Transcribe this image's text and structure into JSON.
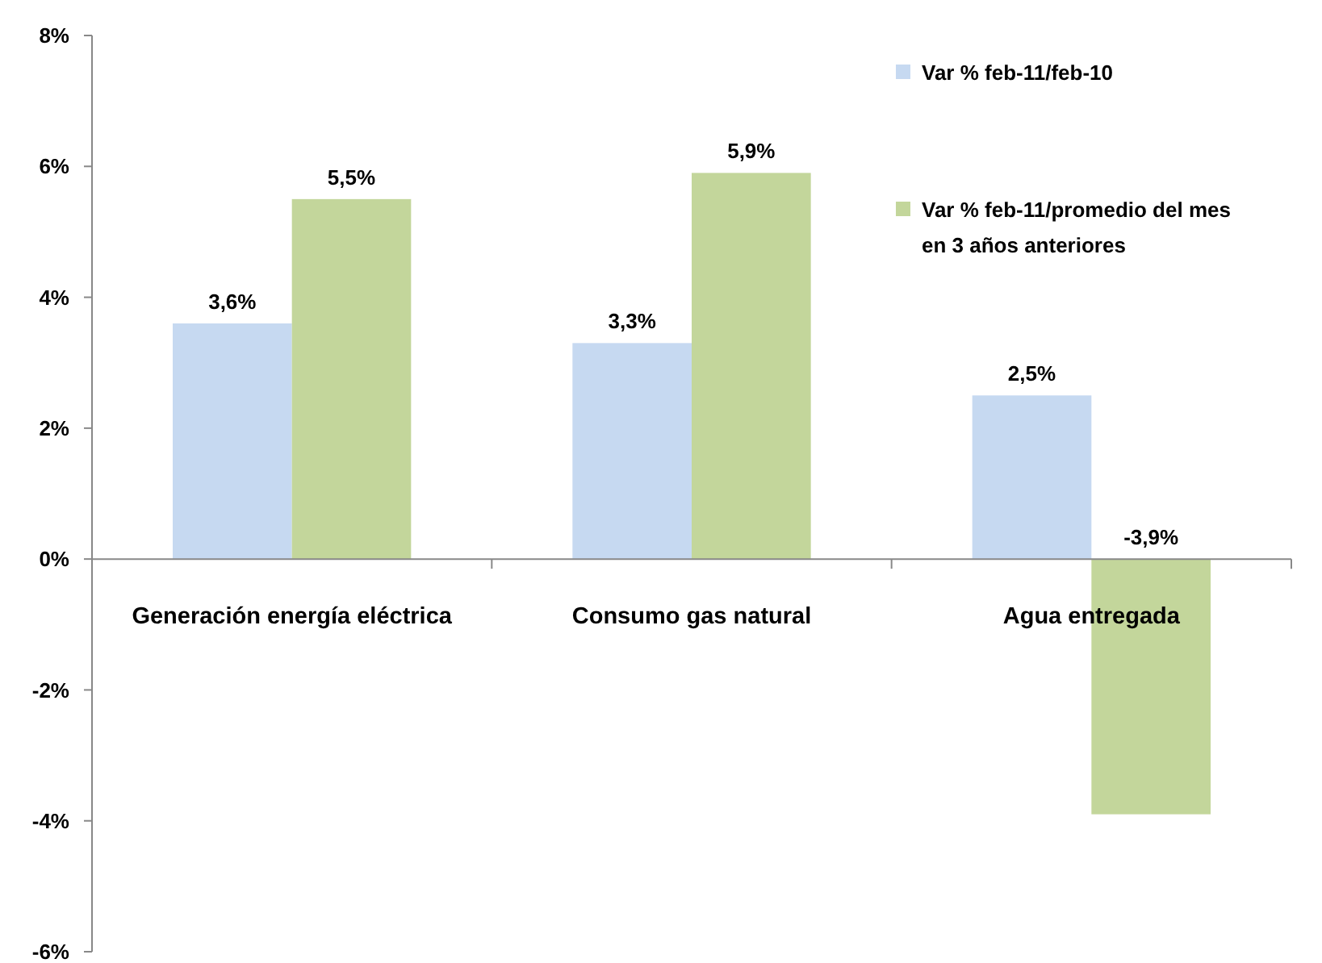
{
  "chart_data": {
    "type": "bar",
    "categories": [
      "Generación energía eléctrica",
      "Consumo gas natural",
      "Agua entregada"
    ],
    "series": [
      {
        "name": "Var % feb-11/feb-10",
        "color": "#c6d9f1",
        "values": [
          3.6,
          3.3,
          2.5
        ],
        "value_labels": [
          "3,6%",
          "3,3%",
          "2,5%"
        ]
      },
      {
        "name": "Var % feb-11/promedio del mes en 3 años anteriores",
        "color": "#c3d69b",
        "values": [
          5.5,
          5.9,
          -3.9
        ],
        "value_labels": [
          "5,5%",
          "5,9%",
          "-3,9%"
        ]
      }
    ],
    "ylim": [
      -6,
      8
    ],
    "yticks": [
      {
        "value": -6,
        "label": "-6%"
      },
      {
        "value": -4,
        "label": "-4%"
      },
      {
        "value": -2,
        "label": "-2%"
      },
      {
        "value": 0,
        "label": "0%"
      },
      {
        "value": 2,
        "label": "2%"
      },
      {
        "value": 4,
        "label": "4%"
      },
      {
        "value": 6,
        "label": "6%"
      },
      {
        "value": 8,
        "label": "8%"
      }
    ],
    "grid": false,
    "legend": "top right"
  }
}
